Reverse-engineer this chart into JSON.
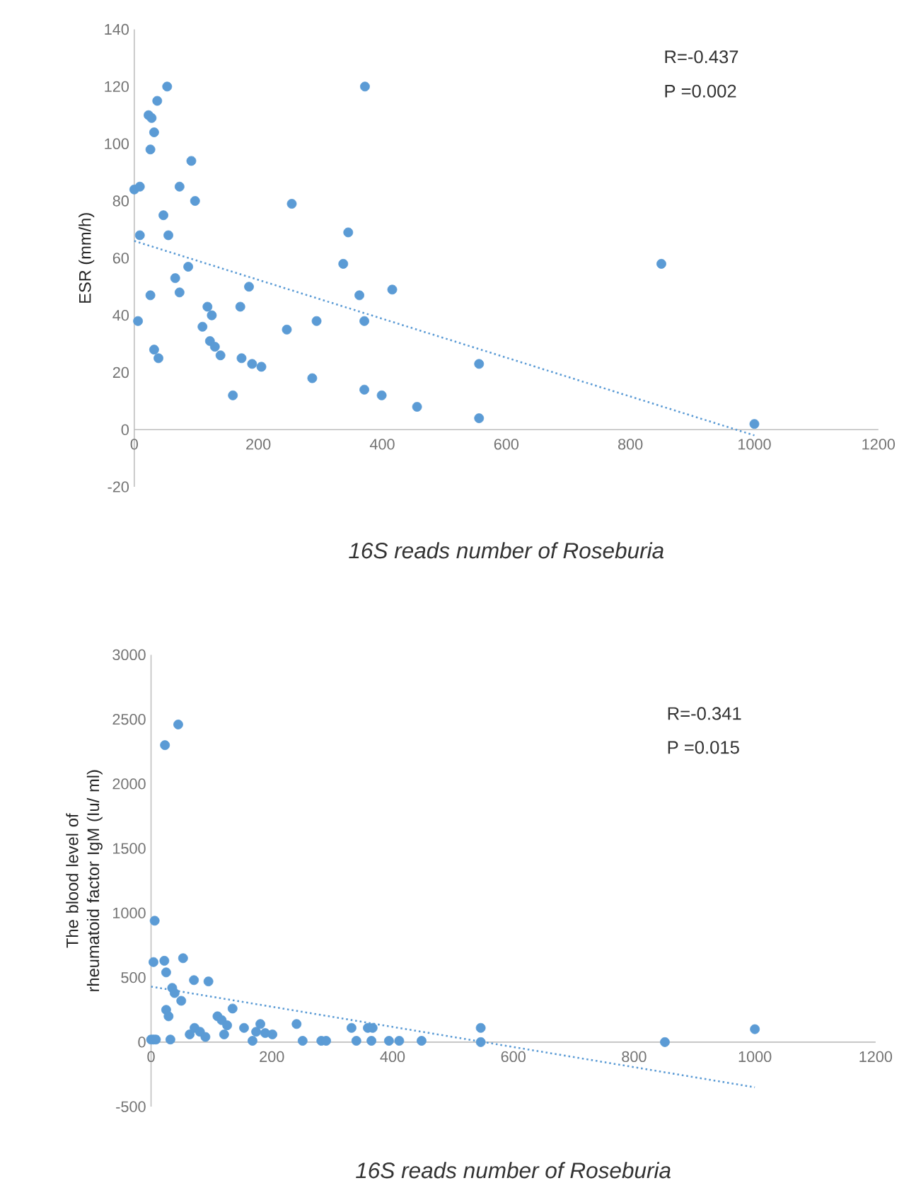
{
  "chart_data": [
    {
      "type": "scatter",
      "xlabel": "16S reads number of Roseburia",
      "ylabel": "ESR (mm/h)",
      "annotations": [
        "R=-0.437",
        "P =0.002"
      ],
      "xlim": [
        0,
        1200
      ],
      "xticks": [
        0,
        200,
        400,
        600,
        800,
        1000,
        1200
      ],
      "ylim": [
        -20,
        140
      ],
      "yticks": [
        -20,
        0,
        20,
        40,
        60,
        80,
        100,
        120,
        140
      ],
      "series": [
        {
          "type": "scatter",
          "color": "#5b9bd5",
          "marker": "circle",
          "x": [
            0,
            9,
            9,
            6,
            23,
            28,
            32,
            26,
            37,
            53,
            26,
            32,
            39,
            47,
            55,
            92,
            73,
            98,
            66,
            73,
            87,
            110,
            118,
            125,
            122,
            130,
            139,
            159,
            171,
            185,
            173,
            190,
            205,
            246,
            254,
            287,
            294,
            337,
            345,
            363,
            372,
            371,
            371,
            399,
            416,
            456,
            556,
            556,
            850,
            1000
          ],
          "values": [
            84,
            85,
            68,
            38,
            110,
            109,
            104,
            98,
            115,
            120,
            47,
            28,
            25,
            75,
            68,
            94,
            85,
            80,
            53,
            48,
            57,
            36,
            43,
            40,
            31,
            29,
            26,
            12,
            43,
            50,
            25,
            23,
            22,
            35,
            79,
            18,
            38,
            58,
            69,
            47,
            120,
            38,
            14,
            12,
            49,
            8,
            23,
            4,
            58,
            2
          ]
        },
        {
          "type": "line",
          "color": "#5b9bd5",
          "line_style": "dotted",
          "x": [
            0,
            1000
          ],
          "values": [
            66,
            -2
          ]
        }
      ]
    },
    {
      "type": "scatter",
      "xlabel": "16S reads number of Roseburia",
      "ylabel": "The blood level of rheumatoid factor IgM (Iu/ ml)",
      "annotations": [
        "R=-0.341",
        "P =0.015"
      ],
      "xlim": [
        0,
        1200
      ],
      "xticks": [
        0,
        200,
        400,
        600,
        800,
        1000,
        1200
      ],
      "ylim": [
        -500,
        3000
      ],
      "yticks": [
        -500,
        0,
        500,
        1000,
        1500,
        2000,
        2500,
        3000
      ],
      "series": [
        {
          "type": "scatter",
          "color": "#5b9bd5",
          "marker": "circle",
          "x": [
            0,
            4,
            8,
            6,
            4,
            22,
            25,
            23,
            45,
            53,
            71,
            95,
            32,
            35,
            39,
            25,
            29,
            50,
            64,
            72,
            81,
            90,
            110,
            117,
            126,
            121,
            135,
            154,
            168,
            181,
            174,
            189,
            201,
            241,
            251,
            282,
            290,
            332,
            340,
            359,
            367,
            365,
            394,
            411,
            448,
            546,
            546,
            851,
            1000
          ],
          "values": [
            20,
            20,
            20,
            940,
            620,
            630,
            540,
            2300,
            2460,
            650,
            480,
            470,
            20,
            420,
            380,
            250,
            200,
            320,
            60,
            110,
            80,
            40,
            200,
            170,
            130,
            60,
            260,
            110,
            10,
            140,
            80,
            70,
            60,
            140,
            10,
            10,
            10,
            110,
            10,
            110,
            110,
            10,
            10,
            10,
            10,
            110,
            0,
            0,
            100
          ]
        },
        {
          "type": "line",
          "color": "#5b9bd5",
          "line_style": "dotted",
          "x": [
            0,
            1000
          ],
          "values": [
            430,
            -350
          ]
        }
      ]
    }
  ]
}
